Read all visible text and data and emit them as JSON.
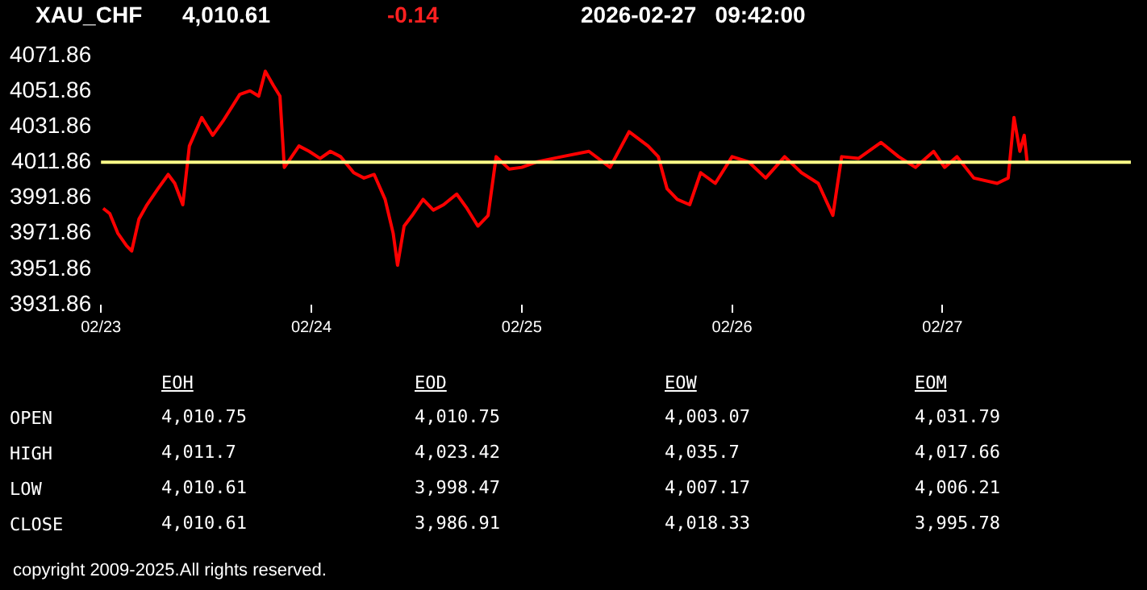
{
  "chart_data": {
    "type": "line",
    "title": "XAU_CHF",
    "annotations": [
      "4,010.61",
      "-0.14",
      "2026-02-27   09:42:00",
      "EOH",
      "EOD",
      "EOW",
      "EOM",
      "OPEN",
      "4,010.75",
      "4,010.75",
      "4,003.07",
      "4,031.79",
      "HIGH",
      "4,011.7",
      "4,023.42",
      "4,035.7",
      "4,017.66",
      "LOW",
      "4,010.61",
      "3,998.47",
      "4,007.17",
      "4,006.21",
      "CLOSE",
      "4,010.61",
      "3,986.91",
      "4,018.33",
      "3,995.78",
      "copyright 2009-2025.All rights reserved."
    ],
    "series": [
      {
        "color": "#ff0000",
        "x": [
          "2026-02-23T00:15",
          "2026-02-23T01:00",
          "2026-02-23T01:55",
          "2026-02-23T02:55",
          "2026-02-23T03:30",
          "2026-02-23T04:20",
          "2026-02-23T05:15",
          "2026-02-23T06:30",
          "2026-02-23T07:40",
          "2026-02-23T08:25",
          "2026-02-23T09:20",
          "2026-02-23T10:05",
          "2026-02-23T11:30",
          "2026-02-23T12:45",
          "2026-02-23T13:55",
          "2026-02-23T15:50",
          "2026-02-23T17:00",
          "2026-02-23T18:00",
          "2026-02-23T18:45",
          "2026-02-23T19:40",
          "2026-02-23T20:25",
          "2026-02-23T20:55",
          "2026-02-23T21:20",
          "2026-02-23T22:35",
          "2026-02-23T23:45",
          "2026-02-24T01:00",
          "2026-02-24T02:10",
          "2026-02-24T03:20",
          "2026-02-24T04:50",
          "2026-02-24T06:00",
          "2026-02-24T07:10",
          "2026-02-24T08:25",
          "2026-02-24T09:20",
          "2026-02-24T09:50",
          "2026-02-24T10:35",
          "2026-02-24T11:30",
          "2026-02-24T12:45",
          "2026-02-24T13:55",
          "2026-02-24T15:05",
          "2026-02-24T16:35",
          "2026-02-24T17:45",
          "2026-02-24T19:00",
          "2026-02-24T20:10",
          "2026-02-24T21:05",
          "2026-02-24T22:35",
          "2026-02-25T00:00",
          "2026-02-25T01:40",
          "2026-02-25T04:35",
          "2026-02-25T07:40",
          "2026-02-25T10:05",
          "2026-02-25T12:15",
          "2026-02-25T14:25",
          "2026-02-25T15:35",
          "2026-02-25T16:35",
          "2026-02-25T17:45",
          "2026-02-25T19:10",
          "2026-02-25T20:25",
          "2026-02-25T22:05",
          "2026-02-26T00:00",
          "2026-02-26T01:55",
          "2026-02-26T03:50",
          "2026-02-26T06:00",
          "2026-02-26T07:55",
          "2026-02-26T09:50",
          "2026-02-26T11:30",
          "2026-02-26T12:30",
          "2026-02-26T14:25",
          "2026-02-26T17:00",
          "2026-02-26T19:00",
          "2026-02-26T20:55",
          "2026-02-26T23:00",
          "2026-02-27T00:15",
          "2026-02-27T01:40",
          "2026-02-27T03:35",
          "2026-02-27T06:15",
          "2026-02-27T07:30",
          "2026-02-27T08:10",
          "2026-02-27T08:50",
          "2026-02-27T09:20",
          "2026-02-27T09:40"
        ],
        "values": [
          3986,
          3983,
          3972,
          3965,
          3962,
          3980,
          3988,
          3997,
          4005,
          4000,
          3988,
          4021,
          4037,
          4027,
          4035,
          4050,
          4052,
          4049,
          4063,
          4055,
          4049,
          4009,
          4012,
          4021,
          4018,
          4014,
          4018,
          4015,
          4006,
          4003,
          4005,
          3991,
          3972,
          3954,
          3976,
          3982,
          3991,
          3985,
          3988,
          3994,
          3986,
          3976,
          3982,
          4015,
          4008,
          4009,
          4012,
          4015,
          4018,
          4009,
          4029,
          4021,
          4015,
          3997,
          3991,
          3988,
          4006,
          4000,
          4015,
          4012,
          4003,
          4015,
          4006,
          4000,
          3982,
          4015,
          4014,
          4023,
          4015,
          4009,
          4018,
          4009,
          4015,
          4003,
          4000,
          4003,
          4037,
          4018,
          4027,
          4012
        ]
      }
    ],
    "xlim": [
      "2026-02-23T00:00",
      "2026-02-27T21:30"
    ],
    "xticks": [
      {
        "value": "2026-02-23",
        "label": "02/23"
      },
      {
        "value": "2026-02-24",
        "label": "02/24"
      },
      {
        "value": "2026-02-25",
        "label": "02/25"
      },
      {
        "value": "2026-02-26",
        "label": "02/26"
      },
      {
        "value": "2026-02-27",
        "label": "02/27"
      }
    ],
    "ylim": [
      3931.86,
      4071.86
    ],
    "yticks": [
      3931.86,
      3951.86,
      3971.86,
      3991.86,
      4011.86,
      4031.86,
      4051.86,
      4071.86
    ],
    "ref_lines": [
      {
        "axis": "y",
        "value": 4011.86,
        "color": "#ffff88"
      }
    ],
    "marker": "none",
    "line_style": "solid",
    "grid": false,
    "legend": false
  }
}
